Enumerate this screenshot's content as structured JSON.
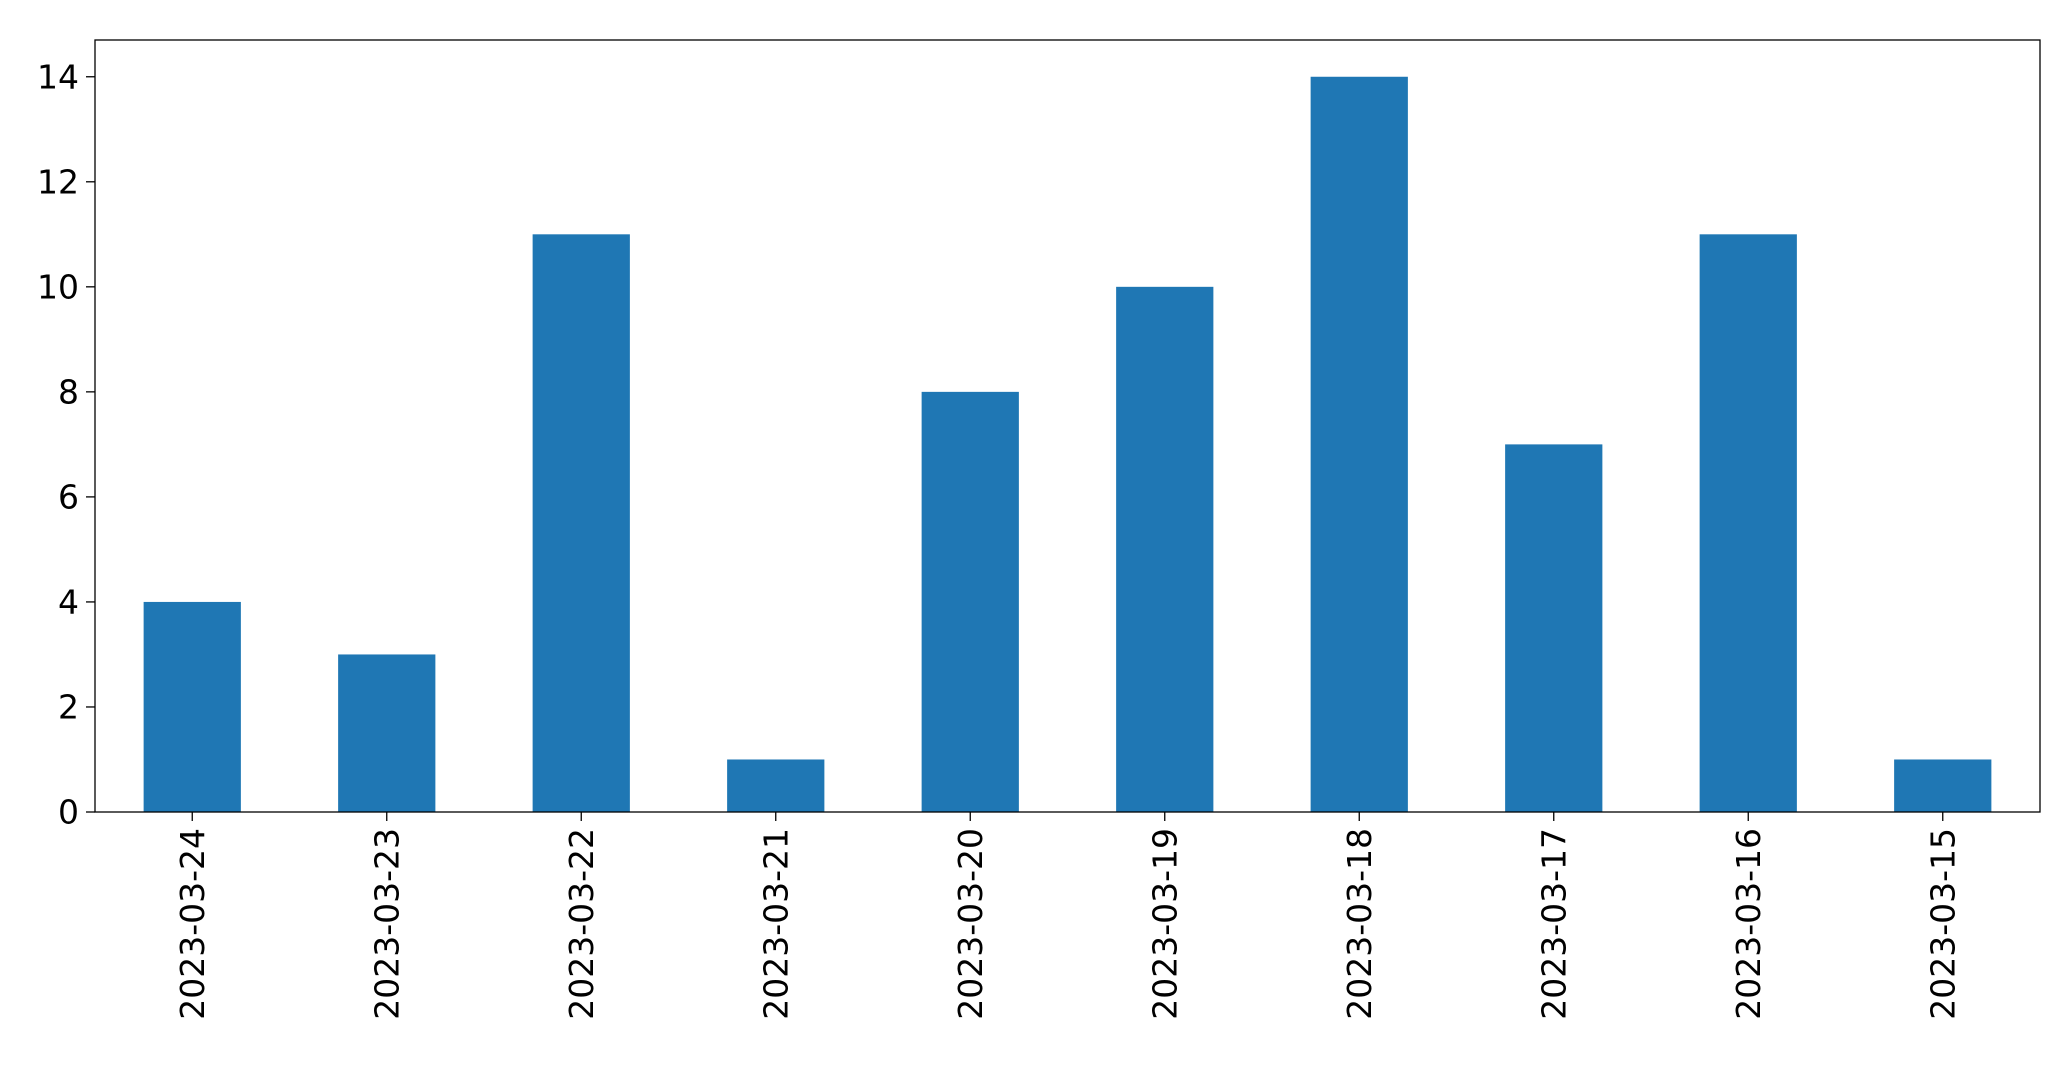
{
  "chart_data": {
    "type": "bar",
    "title": "",
    "xlabel": "",
    "ylabel": "",
    "categories": [
      "2023-03-24",
      "2023-03-23",
      "2023-03-22",
      "2023-03-21",
      "2023-03-20",
      "2023-03-19",
      "2023-03-18",
      "2023-03-17",
      "2023-03-16",
      "2023-03-15"
    ],
    "values": [
      4,
      3,
      11,
      1,
      8,
      10,
      14,
      7,
      11,
      1
    ],
    "ylim": [
      0,
      14.7
    ],
    "yticks": [
      0,
      2,
      4,
      6,
      8,
      10,
      12,
      14
    ],
    "bar_color": "#1f77b4",
    "grid": false,
    "legend": "none"
  }
}
